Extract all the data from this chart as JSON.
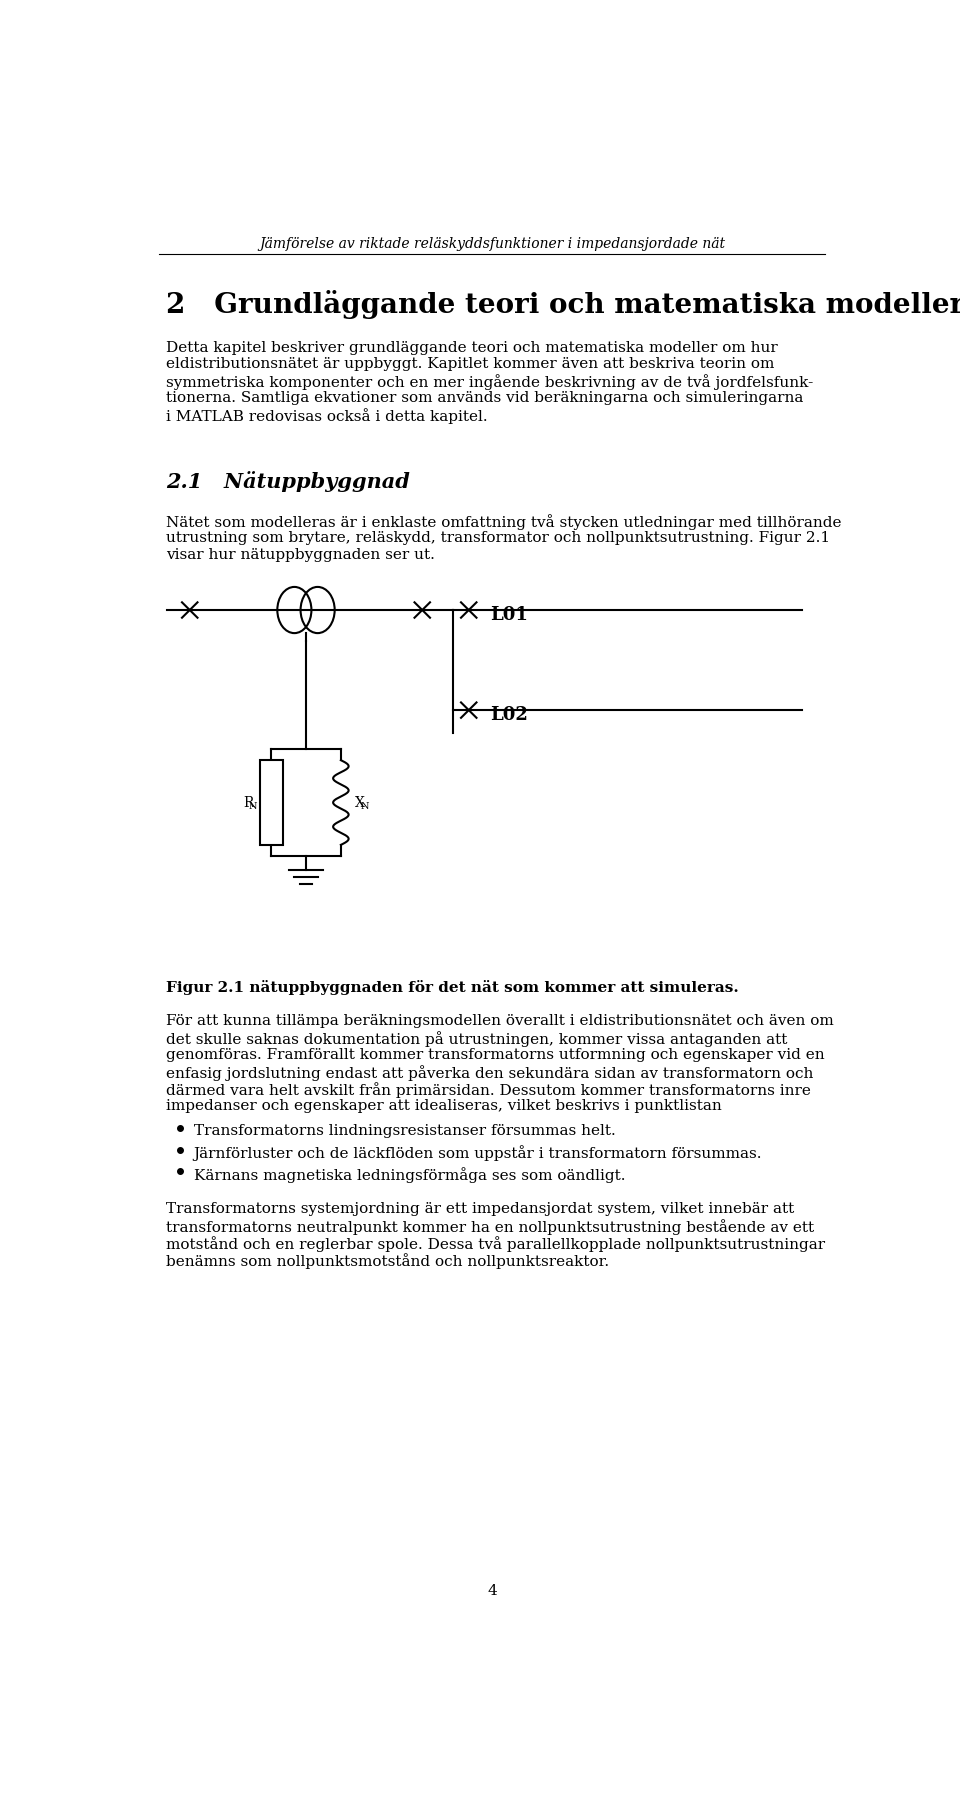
{
  "header_italic": "Jämförelse av riktade reläskyddsfunktioner i impedansjordade nät",
  "chapter_number": "2",
  "chapter_title": "Grundläggande teori och matematiska modeller",
  "para1_line1": "Detta kapitel beskriver grundläggande teori och matematiska modeller om hur",
  "para1_line2": "eldistributionsnätet är uppbyggt. Kapitlet kommer även att beskriva teorin om",
  "para1_line3": "symmetriska komponenter och en mer ingående beskrivning av de två jordfelsfunk-",
  "para1_line4": "tionerna. Samtliga ekvationer som används vid beräkningarna och simuleringarna",
  "para1_line5": "i MATLAB redovisas också i detta kapitel.",
  "section_number": "2.1",
  "section_title": "Nätuppbyggnad",
  "para2_line1": "Nätet som modelleras är i enklaste omfattning två stycken utledningar med tillhörande",
  "para2_line2": "utrustning som brytare, reläskydd, transformator och nollpunktsutrustning. Figur 2.1",
  "para2_line3": "visar hur nätuppbyggnaden ser ut.",
  "fig_caption": "Figur 2.1 nätuppbyggnaden för det nät som kommer att simuleras.",
  "para3_line1": "För att kunna tillämpa beräkningsmodellen överallt i eldistributionsnätet och även om",
  "para3_line2": "det skulle saknas dokumentation på utrustningen, kommer vissa antaganden att",
  "para3_line3": "genomföras. Framförallt kommer transformatorns utformning och egenskaper vid en",
  "para3_line4": "enfasig jordslutning endast att påverka den sekundära sidan av transformatorn och",
  "para3_line5": "därmed vara helt avskilt från primärsidan. Dessutom kommer transformatorns inre",
  "para3_line6": "impedanser och egenskaper att idealiseras, vilket beskrivs i punktlistan",
  "bullet1": "Transformatorns lindningsresistanser försummas helt.",
  "bullet2": "Järnförluster och de läckflöden som uppstår i transformatorn försummas.",
  "bullet3": "Kärnans magnetiska ledningsförmåga ses som oändligt.",
  "para4_line1": "Transformatorns systemjordning är ett impedansjordat system, vilket innebär att",
  "para4_line2": "transformatorns neutralpunkt kommer ha en nollpunktsutrustning bestående av ett",
  "para4_line3": "motstånd och en reglerbar spole. Dessa två parallellkopplade nollpunktsutrustningar",
  "para4_line4": "benämns som nollpunktsmotstånd och nollpunktsreaktor.",
  "page_number": "4",
  "background_color": "#ffffff",
  "text_color": "#000000"
}
